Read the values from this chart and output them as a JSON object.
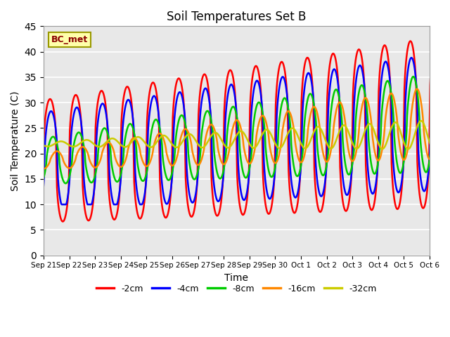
{
  "title": "Soil Temperatures Set B",
  "xlabel": "Time",
  "ylabel": "Soil Temperature (C)",
  "ylim": [
    0,
    45
  ],
  "yticks": [
    0,
    5,
    10,
    15,
    20,
    25,
    30,
    35,
    40,
    45
  ],
  "annotation": "BC_met",
  "series_labels": [
    "-2cm",
    "-4cm",
    "-8cm",
    "-16cm",
    "-32cm"
  ],
  "series_colors": [
    "#ff0000",
    "#0000ff",
    "#00cc00",
    "#ff8800",
    "#cccc00"
  ],
  "series_linewidths": [
    1.8,
    1.8,
    1.8,
    1.8,
    1.8
  ],
  "bg_color": "#ffffff",
  "plot_bg_color": "#e8e8e8",
  "grid_color": "#ffffff",
  "x_tick_labels": [
    "Sep 21",
    "Sep 22",
    "Sep 23",
    "Sep 24",
    "Sep 25",
    "Sep 26",
    "Sep 27",
    "Sep 28",
    "Sep 29",
    "Sep 30",
    "Oct 1",
    "Oct 2",
    "Oct 3",
    "Oct 4",
    "Oct 5",
    "Oct 6"
  ],
  "n_days": 16,
  "points_per_day": 48
}
